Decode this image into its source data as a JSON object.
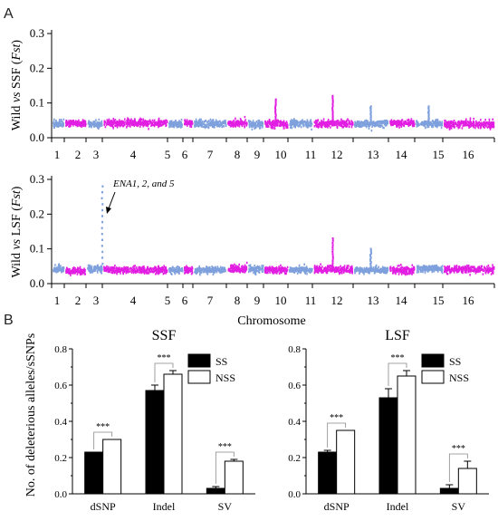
{
  "panels": {
    "a": "A",
    "b": "B"
  },
  "manhattan_common": {
    "chromosomes": [
      "1",
      "2",
      "3",
      "4",
      "5",
      "6",
      "7",
      "8",
      "9",
      "10",
      "11",
      "12",
      "13",
      "14",
      "15",
      "16"
    ],
    "xlabel": "Chromosome",
    "ylim": [
      0,
      0.3
    ],
    "yticks": [
      "0.0",
      "0.1",
      "0.2",
      "0.3"
    ],
    "colors": {
      "odd": "#7ea0dc",
      "even": "#e21ee2"
    }
  },
  "manhattan_1": {
    "ylabel_pre": "Wild ",
    "ylabel_vs": "vs",
    "ylabel_mid": " SSF (",
    "ylabel_fst": "Fst",
    "ylabel_post": ")"
  },
  "manhattan_2": {
    "ylabel_pre": "Wild ",
    "ylabel_vs": "vs",
    "ylabel_mid": " LSF (",
    "ylabel_fst": "Fst",
    "ylabel_post": ")",
    "annotation": "ENA1, 2, and 5"
  },
  "chart_data": [
    {
      "type": "scatter",
      "title": "",
      "xlabel": "Chromosome",
      "ylabel": "Wild vs SSF (Fst)",
      "ylim": [
        0,
        0.3
      ],
      "categories": [
        "1",
        "2",
        "3",
        "4",
        "5",
        "6",
        "7",
        "8",
        "9",
        "10",
        "11",
        "12",
        "13",
        "14",
        "15",
        "16"
      ],
      "baseline_fst": 0.04,
      "peaks": [
        {
          "chromosome": "10",
          "fst": 0.11
        },
        {
          "chromosome": "12",
          "fst": 0.12
        },
        {
          "chromosome": "13",
          "fst": 0.09
        },
        {
          "chromosome": "15",
          "fst": 0.09
        }
      ]
    },
    {
      "type": "scatter",
      "title": "",
      "xlabel": "Chromosome",
      "ylabel": "Wild vs LSF (Fst)",
      "ylim": [
        0,
        0.3
      ],
      "categories": [
        "1",
        "2",
        "3",
        "4",
        "5",
        "6",
        "7",
        "8",
        "9",
        "10",
        "11",
        "12",
        "13",
        "14",
        "15",
        "16"
      ],
      "baseline_fst": 0.04,
      "peaks": [
        {
          "chromosome": "3",
          "fst": 0.28,
          "label": "ENA1, 2, and 5"
        },
        {
          "chromosome": "12",
          "fst": 0.13
        },
        {
          "chromosome": "13",
          "fst": 0.1
        }
      ]
    },
    {
      "type": "bar",
      "title": "SSF",
      "ylabel": "No. of deleterious alleles/sSNPs",
      "ylim": [
        0,
        0.8
      ],
      "yticks": [
        "0.0",
        "0.2",
        "0.4",
        "0.6",
        "0.8"
      ],
      "categories": [
        "dSNP",
        "Indel",
        "SV"
      ],
      "series": [
        {
          "name": "SS",
          "values": [
            0.23,
            0.57,
            0.03
          ],
          "errors": [
            0,
            0.03,
            0.01
          ]
        },
        {
          "name": "NSS",
          "values": [
            0.3,
            0.66,
            0.18
          ],
          "errors": [
            0,
            0.02,
            0.01
          ]
        }
      ],
      "significance": [
        "***",
        "***",
        "***"
      ],
      "legend": "top-right"
    },
    {
      "type": "bar",
      "title": "LSF",
      "ylabel": "",
      "ylim": [
        0,
        0.8
      ],
      "yticks": [
        "0.0",
        "0.2",
        "0.4",
        "0.6",
        "0.8"
      ],
      "categories": [
        "dSNP",
        "Indel",
        "SV"
      ],
      "series": [
        {
          "name": "SS",
          "values": [
            0.23,
            0.53,
            0.03
          ],
          "errors": [
            0.01,
            0.05,
            0.02
          ]
        },
        {
          "name": "NSS",
          "values": [
            0.35,
            0.65,
            0.14
          ],
          "errors": [
            0,
            0.03,
            0.04
          ]
        }
      ],
      "significance": [
        "***",
        "***",
        "***"
      ],
      "legend": "top-right"
    }
  ]
}
